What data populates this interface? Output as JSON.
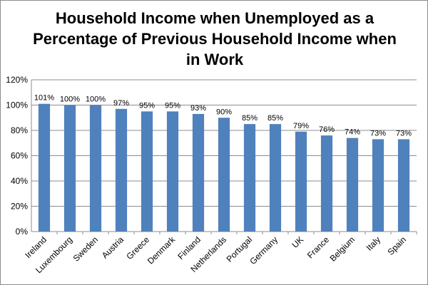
{
  "chart_data": {
    "type": "bar",
    "title_lines": [
      "Household Income when Unemployed as a",
      "Percentage of Previous Household Income when",
      "in Work"
    ],
    "categories": [
      "Ireland",
      "Luxembourg",
      "Sweden",
      "Austria",
      "Greece",
      "Denmark",
      "Finland",
      "Netherlands",
      "Portugal",
      "Germany",
      "UK",
      "France",
      "Belgium",
      "Italy",
      "Spain"
    ],
    "values": [
      101,
      100,
      100,
      97,
      95,
      95,
      93,
      90,
      85,
      85,
      79,
      76,
      74,
      73,
      73
    ],
    "data_labels": [
      "101%",
      "100%",
      "100%",
      "97%",
      "95%",
      "95%",
      "93%",
      "90%",
      "85%",
      "85%",
      "79%",
      "76%",
      "74%",
      "73%",
      "73%"
    ],
    "y_ticks": [
      0,
      20,
      40,
      60,
      80,
      100,
      120
    ],
    "y_tick_labels": [
      "0%",
      "20%",
      "40%",
      "60%",
      "80%",
      "100%",
      "120%"
    ],
    "ylim": [
      0,
      120
    ],
    "grid": true,
    "legend": "none",
    "bar_color": "#4f81bd",
    "grid_color": "#8c8c8c"
  }
}
